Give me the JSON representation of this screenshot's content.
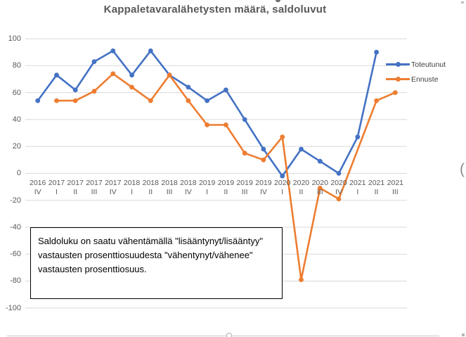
{
  "title": "Kappaletavaralähetysten määrä, saldoluvut",
  "chart_data": {
    "type": "line",
    "categories": [
      "2016 IV",
      "2017 I",
      "2017 II",
      "2017 III",
      "2017 IV",
      "2018 I",
      "2018 II",
      "2018 III",
      "2018 IV",
      "2019 I",
      "2019 II",
      "2019 III",
      "2019 IV",
      "2020 I",
      "2020 II",
      "2020 III",
      "2020 IV",
      "2021 I",
      "2021 II",
      "2021 III"
    ],
    "series": [
      {
        "name": "Toteutunut",
        "color": "#4472C4",
        "values": [
          54,
          73,
          62,
          83,
          91,
          73,
          91,
          73,
          64,
          54,
          62,
          40,
          18,
          -2,
          18,
          9,
          0,
          27,
          90,
          null
        ]
      },
      {
        "name": "Ennuste",
        "color": "#ED7D31",
        "values": [
          null,
          54,
          54,
          61,
          74,
          64,
          54,
          73,
          54,
          36,
          36,
          15,
          10,
          27,
          -79,
          -11,
          -19,
          null,
          54,
          60
        ]
      }
    ],
    "title": "Kappaletavaralähetysten määrä, saldoluvut",
    "xlabel": "",
    "ylabel": "",
    "ylim": [
      -100,
      100
    ],
    "ytick_step": 20,
    "grid": true,
    "gridline_color": "#D9D9D9",
    "legend_position": "right"
  },
  "annotation": {
    "text": "Saldoluku on saatu vähentämällä \"lisääntynyt/lisääntyy\" vastausten prosenttiosuudesta \"vähentynyt/vähenee\" vastausten prosenttiosuus."
  },
  "edge_artifacts": {
    "left_glyph": ")",
    "right_glyph": "("
  }
}
